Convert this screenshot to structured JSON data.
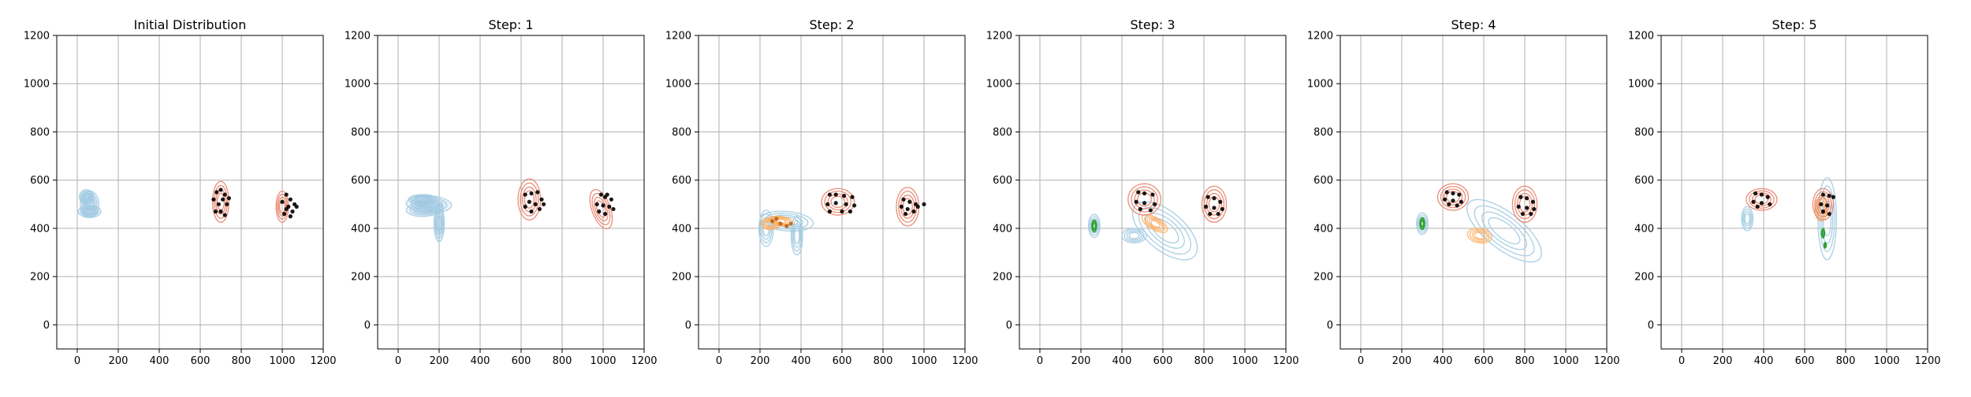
{
  "chart_data": [
    {
      "type": "contour",
      "title": "Initial Distribution",
      "xlim": [
        -100,
        1200
      ],
      "ylim": [
        -100,
        1200
      ],
      "xticks": [
        0,
        200,
        400,
        600,
        800,
        1000,
        1200
      ],
      "yticks": [
        0,
        200,
        400,
        600,
        800,
        1000,
        1200
      ],
      "grid": true,
      "series": [
        {
          "role": "blue-contours",
          "color": "#9ecae1",
          "ellipses": [
            [
              60,
              500,
              45,
              55,
              0
            ],
            [
              60,
              470,
              55,
              25,
              0
            ],
            [
              45,
              530,
              35,
              30,
              0
            ]
          ]
        },
        {
          "role": "red-contours",
          "color": "#e8826a",
          "ellipses": [
            [
              700,
              510,
              40,
              85,
              0
            ],
            [
              1000,
              490,
              30,
              65,
              0
            ]
          ]
        },
        {
          "role": "black-points",
          "color": "#000000",
          "points": [
            [
              680,
              550
            ],
            [
              700,
              560
            ],
            [
              720,
              540
            ],
            [
              690,
              500
            ],
            [
              730,
              500
            ],
            [
              700,
              470
            ],
            [
              675,
              470
            ],
            [
              720,
              455
            ],
            [
              665,
              520
            ],
            [
              740,
              525
            ],
            [
              710,
              520
            ],
            [
              1020,
              540
            ],
            [
              1040,
              520
            ],
            [
              1060,
              500
            ],
            [
              1000,
              510
            ],
            [
              1030,
              490
            ],
            [
              1050,
              470
            ],
            [
              1010,
              460
            ],
            [
              1070,
              490
            ],
            [
              1040,
              450
            ],
            [
              1020,
              480
            ]
          ]
        }
      ]
    },
    {
      "type": "contour",
      "title": "Step: 1",
      "xlim": [
        -100,
        1200
      ],
      "ylim": [
        -100,
        1200
      ],
      "xticks": [
        0,
        200,
        400,
        600,
        800,
        1000,
        1200
      ],
      "yticks": [
        0,
        200,
        400,
        600,
        800,
        1000,
        1200
      ],
      "grid": true,
      "series": [
        {
          "role": "blue-contours",
          "color": "#9ecae1",
          "ellipses": [
            [
              150,
              500,
              110,
              35,
              -3
            ],
            [
              130,
              480,
              90,
              30,
              4
            ],
            [
              200,
              420,
              25,
              75,
              0
            ],
            [
              120,
              520,
              70,
              20,
              0
            ]
          ]
        },
        {
          "role": "red-contours",
          "color": "#e8826a",
          "ellipses": [
            [
              640,
              520,
              55,
              85,
              0
            ],
            [
              990,
              480,
              45,
              85,
              20
            ]
          ]
        },
        {
          "role": "black-points",
          "color": "#000000",
          "points": [
            [
              620,
              540
            ],
            [
              650,
              545
            ],
            [
              680,
              550
            ],
            [
              700,
              520
            ],
            [
              640,
              510
            ],
            [
              670,
              500
            ],
            [
              620,
              490
            ],
            [
              690,
              480
            ],
            [
              650,
              470
            ],
            [
              710,
              500
            ],
            [
              990,
              540
            ],
            [
              1010,
              530
            ],
            [
              1040,
              520
            ],
            [
              970,
              500
            ],
            [
              1000,
              495
            ],
            [
              1030,
              490
            ],
            [
              980,
              470
            ],
            [
              1010,
              460
            ],
            [
              1050,
              480
            ],
            [
              1020,
              540
            ]
          ]
        }
      ]
    },
    {
      "type": "contour",
      "title": "Step: 2",
      "xlim": [
        -100,
        1200
      ],
      "ylim": [
        -100,
        1200
      ],
      "xticks": [
        0,
        200,
        400,
        600,
        800,
        1000,
        1200
      ],
      "yticks": [
        0,
        200,
        400,
        600,
        800,
        1000,
        1200
      ],
      "grid": true,
      "series": [
        {
          "role": "blue-contours",
          "color": "#9ecae1",
          "ellipses": [
            [
              230,
              400,
              35,
              75,
              0
            ],
            [
              380,
              370,
              28,
              80,
              0
            ],
            [
              330,
              430,
              130,
              40,
              -5
            ]
          ]
        },
        {
          "role": "orange-contours",
          "color": "#fdae61",
          "ellipses": [
            [
              250,
              420,
              45,
              25,
              0
            ],
            [
              300,
              430,
              60,
              20,
              -8
            ]
          ]
        },
        {
          "role": "red-contours",
          "color": "#e8826a",
          "ellipses": [
            [
              580,
              510,
              80,
              55,
              0
            ],
            [
              920,
              490,
              55,
              80,
              0
            ]
          ]
        },
        {
          "role": "black-points",
          "color": "#000000",
          "points": [
            [
              540,
              540
            ],
            [
              570,
              540
            ],
            [
              610,
              535
            ],
            [
              650,
              530
            ],
            [
              530,
              500
            ],
            [
              570,
              505
            ],
            [
              620,
              500
            ],
            [
              660,
              495
            ],
            [
              540,
              470
            ],
            [
              600,
              470
            ],
            [
              640,
              470
            ],
            [
              900,
              520
            ],
            [
              930,
              510
            ],
            [
              960,
              500
            ],
            [
              890,
              490
            ],
            [
              920,
              480
            ],
            [
              950,
              470
            ],
            [
              910,
              460
            ],
            [
              970,
              490
            ],
            [
              1000,
              500
            ]
          ]
        },
        {
          "role": "brown-points",
          "color": "#b5651d",
          "points": [
            [
              260,
              430
            ],
            [
              300,
              420
            ],
            [
              330,
              410
            ],
            [
              280,
              440
            ],
            [
              350,
              420
            ]
          ]
        }
      ]
    },
    {
      "type": "contour",
      "title": "Step: 3",
      "xlim": [
        -100,
        1200
      ],
      "ylim": [
        -100,
        1200
      ],
      "xticks": [
        0,
        200,
        400,
        600,
        800,
        1000,
        1200
      ],
      "yticks": [
        0,
        200,
        400,
        600,
        800,
        1000,
        1200
      ],
      "grid": true,
      "series": [
        {
          "role": "blue-contours",
          "color": "#9ecae1",
          "ellipses": [
            [
              265,
              410,
              28,
              48,
              0
            ],
            [
              610,
              390,
              190,
              80,
              -40
            ],
            [
              460,
              370,
              60,
              30,
              0
            ]
          ]
        },
        {
          "role": "green-contours",
          "color": "#2ca02c",
          "ellipses": [
            [
              265,
              410,
              12,
              25,
              0
            ]
          ]
        },
        {
          "role": "orange-contours",
          "color": "#fdae61",
          "ellipses": [
            [
              560,
              420,
              70,
              25,
              -30
            ]
          ]
        },
        {
          "role": "red-contours",
          "color": "#e8826a",
          "ellipses": [
            [
              510,
              520,
              80,
              65,
              0
            ],
            [
              850,
              500,
              60,
              75,
              0
            ]
          ]
        },
        {
          "role": "black-points",
          "color": "#000000",
          "points": [
            [
              480,
              550
            ],
            [
              510,
              545
            ],
            [
              550,
              540
            ],
            [
              470,
              510
            ],
            [
              510,
              505
            ],
            [
              560,
              500
            ],
            [
              490,
              480
            ],
            [
              540,
              475
            ],
            [
              820,
              530
            ],
            [
              850,
              525
            ],
            [
              880,
              510
            ],
            [
              810,
              490
            ],
            [
              850,
              485
            ],
            [
              890,
              480
            ],
            [
              830,
              460
            ],
            [
              870,
              460
            ]
          ]
        }
      ]
    },
    {
      "type": "contour",
      "title": "Step: 4",
      "xlim": [
        -100,
        1200
      ],
      "ylim": [
        -100,
        1200
      ],
      "xticks": [
        0,
        200,
        400,
        600,
        800,
        1000,
        1200
      ],
      "yticks": [
        0,
        200,
        400,
        600,
        800,
        1000,
        1200
      ],
      "grid": true,
      "series": [
        {
          "role": "blue-contours",
          "color": "#9ecae1",
          "ellipses": [
            [
              300,
              420,
              28,
              45,
              0
            ],
            [
              700,
              390,
              220,
              75,
              -38
            ]
          ]
        },
        {
          "role": "green-contours",
          "color": "#2ca02c",
          "ellipses": [
            [
              300,
              420,
              12,
              25,
              0
            ]
          ]
        },
        {
          "role": "orange-contours",
          "color": "#fdae61",
          "ellipses": [
            [
              580,
              370,
              60,
              30,
              -10
            ]
          ]
        },
        {
          "role": "red-contours",
          "color": "#e8826a",
          "ellipses": [
            [
              450,
              530,
              75,
              55,
              0
            ],
            [
              800,
              500,
              60,
              75,
              0
            ]
          ]
        },
        {
          "role": "black-points",
          "color": "#000000",
          "points": [
            [
              420,
              550
            ],
            [
              450,
              545
            ],
            [
              480,
              540
            ],
            [
              410,
              520
            ],
            [
              450,
              515
            ],
            [
              490,
              510
            ],
            [
              430,
              500
            ],
            [
              470,
              495
            ],
            [
              780,
              530
            ],
            [
              810,
              525
            ],
            [
              840,
              510
            ],
            [
              770,
              490
            ],
            [
              810,
              485
            ],
            [
              845,
              480
            ],
            [
              790,
              460
            ],
            [
              830,
              460
            ]
          ]
        }
      ]
    },
    {
      "type": "contour",
      "title": "Step: 5",
      "xlim": [
        -100,
        1200
      ],
      "ylim": [
        -100,
        1200
      ],
      "xticks": [
        0,
        200,
        400,
        600,
        800,
        1000,
        1200
      ],
      "yticks": [
        0,
        200,
        400,
        600,
        800,
        1000,
        1200
      ],
      "grid": true,
      "series": [
        {
          "role": "blue-contours",
          "color": "#9ecae1",
          "ellipses": [
            [
              320,
              440,
              28,
              50,
              0
            ],
            [
              710,
              440,
              45,
              170,
              0
            ]
          ]
        },
        {
          "role": "green-contours",
          "color": "#2ca02c",
          "ellipses": [
            [
              690,
              380,
              8,
              20,
              0
            ],
            [
              700,
              330,
              6,
              12,
              0
            ]
          ]
        },
        {
          "role": "orange-contours",
          "color": "#fdae61",
          "ellipses": [
            [
              680,
              480,
              30,
              50,
              0
            ]
          ]
        },
        {
          "role": "red-contours",
          "color": "#e8826a",
          "ellipses": [
            [
              390,
              520,
              75,
              45,
              0
            ],
            [
              690,
              500,
              50,
              65,
              0
            ]
          ]
        },
        {
          "role": "black-points",
          "color": "#000000",
          "points": [
            [
              360,
              545
            ],
            [
              390,
              540
            ],
            [
              420,
              530
            ],
            [
              350,
              510
            ],
            [
              390,
              505
            ],
            [
              430,
              500
            ],
            [
              370,
              490
            ],
            [
              690,
              540
            ],
            [
              720,
              535
            ],
            [
              740,
              530
            ],
            [
              680,
              500
            ],
            [
              710,
              495
            ],
            [
              690,
              470
            ],
            [
              720,
              460
            ]
          ]
        }
      ]
    }
  ]
}
